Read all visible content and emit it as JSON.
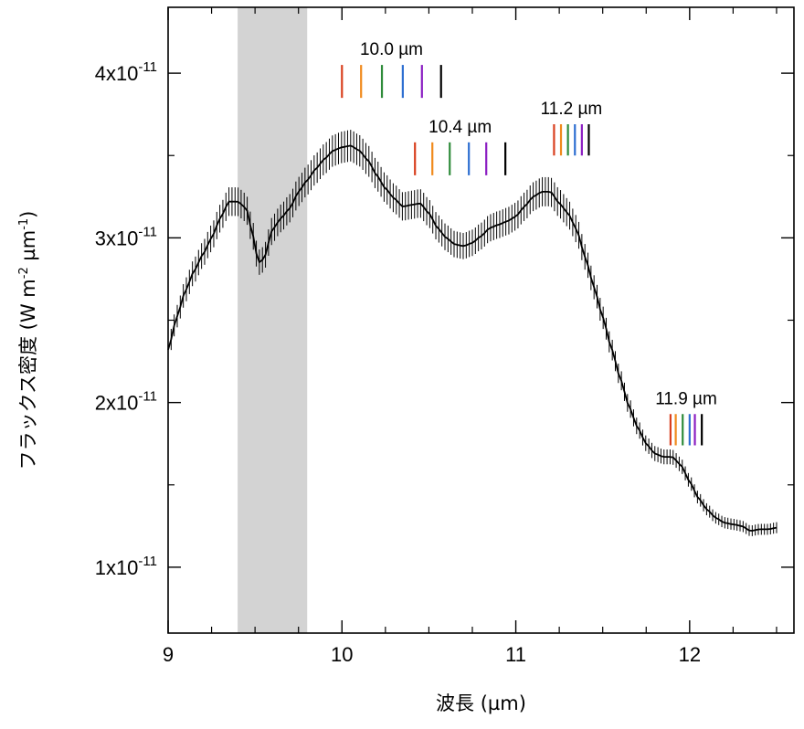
{
  "chart_data": {
    "type": "line",
    "xlabel": "波長 (µm)",
    "ylabel_main": "フラックス密度 (W m",
    "ylabel_sup1": "-2",
    "ylabel_mid": " µm",
    "ylabel_sup2": "-1",
    "ylabel_end": ")",
    "xlim": [
      9.0,
      12.6
    ],
    "ylim": [
      6e-12,
      4.4e-11
    ],
    "x_ticks": [
      {
        "value": 9,
        "label": "9"
      },
      {
        "value": 10,
        "label": "10"
      },
      {
        "value": 11,
        "label": "11"
      },
      {
        "value": 12,
        "label": "12"
      }
    ],
    "y_ticks": [
      {
        "value": 1e-11,
        "base": "1x10",
        "exp": "-11"
      },
      {
        "value": 2e-11,
        "base": "2x10",
        "exp": "-11"
      },
      {
        "value": 3e-11,
        "base": "3x10",
        "exp": "-11"
      },
      {
        "value": 4e-11,
        "base": "4x10",
        "exp": "-11"
      }
    ],
    "shaded_region": {
      "x0": 9.4,
      "x1": 9.8,
      "color": "#d3d3d3"
    },
    "spectrum": {
      "name": "",
      "color": "#000000",
      "error_fraction": 0.027,
      "points": [
        [
          9.0,
          2.32e-11
        ],
        [
          9.05,
          2.52e-11
        ],
        [
          9.1,
          2.68e-11
        ],
        [
          9.15,
          2.8e-11
        ],
        [
          9.2,
          2.9e-11
        ],
        [
          9.25,
          3e-11
        ],
        [
          9.3,
          3.12e-11
        ],
        [
          9.35,
          3.22e-11
        ],
        [
          9.4,
          3.22e-11
        ],
        [
          9.45,
          3.18e-11
        ],
        [
          9.48,
          3.05e-11
        ],
        [
          9.52,
          2.85e-11
        ],
        [
          9.55,
          2.87e-11
        ],
        [
          9.6,
          3.05e-11
        ],
        [
          9.65,
          3.12e-11
        ],
        [
          9.7,
          3.18e-11
        ],
        [
          9.75,
          3.28e-11
        ],
        [
          9.8,
          3.35e-11
        ],
        [
          9.85,
          3.42e-11
        ],
        [
          9.9,
          3.48e-11
        ],
        [
          9.95,
          3.53e-11
        ],
        [
          10.0,
          3.55e-11
        ],
        [
          10.05,
          3.56e-11
        ],
        [
          10.1,
          3.53e-11
        ],
        [
          10.15,
          3.47e-11
        ],
        [
          10.2,
          3.38e-11
        ],
        [
          10.25,
          3.3e-11
        ],
        [
          10.3,
          3.24e-11
        ],
        [
          10.35,
          3.19e-11
        ],
        [
          10.4,
          3.2e-11
        ],
        [
          10.45,
          3.21e-11
        ],
        [
          10.5,
          3.15e-11
        ],
        [
          10.55,
          3.06e-11
        ],
        [
          10.6,
          3e-11
        ],
        [
          10.65,
          2.96e-11
        ],
        [
          10.7,
          2.95e-11
        ],
        [
          10.75,
          2.97e-11
        ],
        [
          10.8,
          3.01e-11
        ],
        [
          10.85,
          3.06e-11
        ],
        [
          10.9,
          3.08e-11
        ],
        [
          10.95,
          3.1e-11
        ],
        [
          11.0,
          3.13e-11
        ],
        [
          11.05,
          3.19e-11
        ],
        [
          11.1,
          3.25e-11
        ],
        [
          11.15,
          3.28e-11
        ],
        [
          11.2,
          3.28e-11
        ],
        [
          11.25,
          3.21e-11
        ],
        [
          11.3,
          3.15e-11
        ],
        [
          11.35,
          3.05e-11
        ],
        [
          11.4,
          2.88e-11
        ],
        [
          11.45,
          2.7e-11
        ],
        [
          11.5,
          2.52e-11
        ],
        [
          11.55,
          2.33e-11
        ],
        [
          11.6,
          2.15e-11
        ],
        [
          11.65,
          1.98e-11
        ],
        [
          11.7,
          1.85e-11
        ],
        [
          11.75,
          1.75e-11
        ],
        [
          11.8,
          1.69e-11
        ],
        [
          11.85,
          1.67e-11
        ],
        [
          11.9,
          1.67e-11
        ],
        [
          11.95,
          1.62e-11
        ],
        [
          12.0,
          1.52e-11
        ],
        [
          12.05,
          1.42e-11
        ],
        [
          12.1,
          1.35e-11
        ],
        [
          12.15,
          1.3e-11
        ],
        [
          12.2,
          1.27e-11
        ],
        [
          12.25,
          1.26e-11
        ],
        [
          12.3,
          1.25e-11
        ],
        [
          12.35,
          1.22e-11
        ],
        [
          12.4,
          1.23e-11
        ],
        [
          12.45,
          1.23e-11
        ],
        [
          12.5,
          1.24e-11
        ]
      ]
    },
    "feature_markers": [
      {
        "label": "10.0 µm",
        "positions": [
          10.0,
          10.11,
          10.23,
          10.35,
          10.46,
          10.57
        ],
        "y_top": 4.05e-11,
        "y_bottom": 3.85e-11
      },
      {
        "label": "10.4 µm",
        "positions": [
          10.42,
          10.52,
          10.62,
          10.73,
          10.83,
          10.94
        ],
        "y_top": 3.58e-11,
        "y_bottom": 3.38e-11
      },
      {
        "label": "11.2 µm",
        "positions": [
          11.22,
          11.26,
          11.3,
          11.34,
          11.38,
          11.42
        ],
        "y_top": 3.69e-11,
        "y_bottom": 3.5e-11
      },
      {
        "label": "11.9 µm",
        "positions": [
          11.89,
          11.92,
          11.96,
          12.0,
          12.03,
          12.07
        ],
        "y_top": 1.93e-11,
        "y_bottom": 1.74e-11
      }
    ],
    "marker_colors": [
      "#d9401f",
      "#f08a1c",
      "#2e8b3a",
      "#2e6fd1",
      "#8b1ec2",
      "#000000"
    ]
  }
}
